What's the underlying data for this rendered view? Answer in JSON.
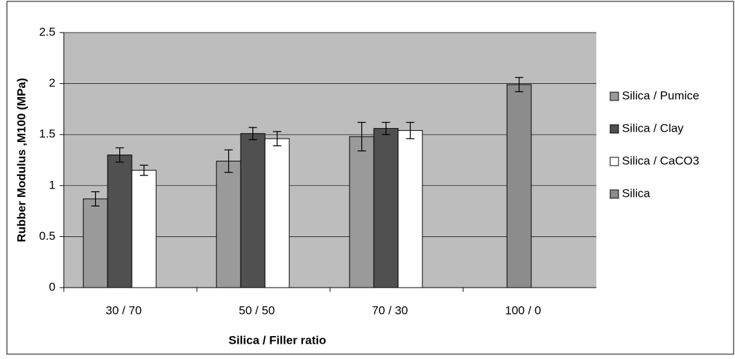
{
  "chart_data": {
    "type": "bar",
    "x_label": "Silica / Filler ratio",
    "y_label": "Rubber Modulus ,M100 (MPa)",
    "categories": [
      "30 / 70",
      "50 / 50",
      "70 / 30",
      "100 / 0"
    ],
    "series": [
      {
        "name": "Silica / Pumice",
        "color": "#9a9a9a",
        "values": [
          0.87,
          1.24,
          1.48,
          null
        ],
        "errors": [
          0.07,
          0.11,
          0.14,
          null
        ]
      },
      {
        "name": "Silica / Clay",
        "color": "#505050",
        "values": [
          1.3,
          1.51,
          1.56,
          null
        ],
        "errors": [
          0.07,
          0.06,
          0.06,
          null
        ]
      },
      {
        "name": "Silica / CaCO3",
        "color": "#ffffff",
        "values": [
          1.15,
          1.46,
          1.54,
          null
        ],
        "errors": [
          0.05,
          0.07,
          0.08,
          null
        ]
      },
      {
        "name": "Silica",
        "color": "#8c8c8c",
        "values": [
          null,
          null,
          null,
          1.99
        ],
        "errors": [
          null,
          null,
          null,
          0.07
        ]
      }
    ],
    "ylim": [
      0,
      2.5
    ],
    "yticks": [
      0,
      0.5,
      1,
      1.5,
      2,
      2.5
    ],
    "grid": true,
    "legend": "right"
  }
}
